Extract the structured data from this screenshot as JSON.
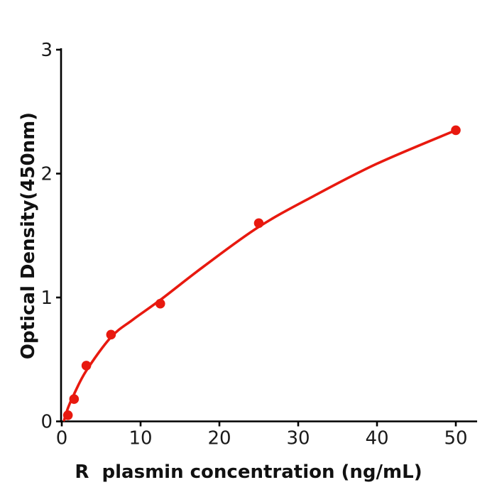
{
  "figure": {
    "background": "#ffffff",
    "accent_color": "#e8190f",
    "axis_color": "#000000",
    "tick_color": "#1a1a1a"
  },
  "chart_data": {
    "type": "scatter",
    "title": "",
    "xlabel": "R  plasmin concentration (ng/mL)",
    "ylabel": "Optical Density(450nm)",
    "xlim": [
      0,
      52.8
    ],
    "ylim": [
      0,
      3
    ],
    "x_ticks": [
      0,
      10,
      20,
      30,
      40,
      50
    ],
    "y_ticks": [
      0,
      1,
      2,
      3
    ],
    "grid": false,
    "legend": null,
    "series": [
      {
        "name": "standard-data-points",
        "plot": "scatter",
        "color": "#e8190f",
        "marker_radius": 6.8,
        "points": [
          [
            0.78,
            0.05
          ],
          [
            1.56,
            0.18
          ],
          [
            3.12,
            0.45
          ],
          [
            6.25,
            0.7
          ],
          [
            12.5,
            0.95
          ],
          [
            25,
            1.6
          ],
          [
            50,
            2.35
          ]
        ]
      },
      {
        "name": "fitted-standard-curve",
        "plot": "line",
        "color": "#e8190f",
        "line_width": 3.6,
        "points": [
          [
            0.3,
            0.01
          ],
          [
            0.8,
            0.11
          ],
          [
            1.56,
            0.22
          ],
          [
            3.12,
            0.41
          ],
          [
            6.25,
            0.68
          ],
          [
            9,
            0.82
          ],
          [
            12.5,
            0.98
          ],
          [
            18,
            1.25
          ],
          [
            25,
            1.57
          ],
          [
            32,
            1.82
          ],
          [
            40,
            2.08
          ],
          [
            50,
            2.35
          ]
        ]
      }
    ]
  }
}
